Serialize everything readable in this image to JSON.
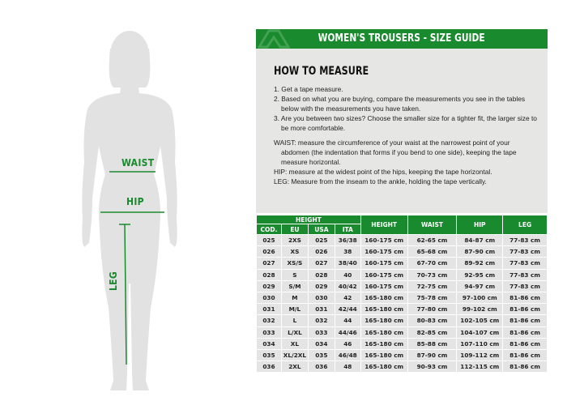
{
  "figure": {
    "labels": {
      "waist": "WAIST",
      "hip": "HIP",
      "leg": "LEG"
    },
    "accent": "#1a8a2e",
    "silhouette_color": "#e2e2e2"
  },
  "header": {
    "title": "WOMEN'S TROUSERS - SIZE GUIDE",
    "color": "#1a8a2e"
  },
  "how_to": {
    "title": "HOW TO MEASURE",
    "steps": [
      "1. Get a tape measure.",
      "2. Based on what you are buying, compare the measurements you see in the tables below with the measurements you have taken.",
      "3. Are you between two sizes? Choose the smaller size for a tighter fit, the larger size to be more comfortable."
    ],
    "notes": [
      "WAIST: measure the circumference of your waist at the narrowest point of your abdomen (the indentation that forms if you bend to one side), keeping the tape measure horizontal.",
      "HIP: measure at the widest point of the hips, keeping the tape horizontal.",
      "LEG: Measure from the inseam to the ankle, holding the tape vertically."
    ]
  },
  "table": {
    "group_header": "HEIGHT",
    "sub_headers": [
      "COD.",
      "EU",
      "USA",
      "ITA"
    ],
    "headers": [
      "HEIGHT",
      "WAIST",
      "HIP",
      "LEG"
    ],
    "rows": [
      [
        "025",
        "2XS",
        "025",
        "36/38",
        "160-175 cm",
        "62-65 cm",
        "84-87 cm",
        "77-83 cm"
      ],
      [
        "026",
        "XS",
        "026",
        "38",
        "160-175 cm",
        "65-68 cm",
        "87-90 cm",
        "77-83 cm"
      ],
      [
        "027",
        "XS/S",
        "027",
        "38/40",
        "160-175 cm",
        "67-70 cm",
        "89-92 cm",
        "77-83 cm"
      ],
      [
        "028",
        "S",
        "028",
        "40",
        "160-175 cm",
        "70-73 cm",
        "92-95 cm",
        "77-83 cm"
      ],
      [
        "029",
        "S/M",
        "029",
        "40/42",
        "160-175 cm",
        "72-75 cm",
        "94-97 cm",
        "77-83 cm"
      ],
      [
        "030",
        "M",
        "030",
        "42",
        "165-180 cm",
        "75-78 cm",
        "97-100 cm",
        "81-86 cm"
      ],
      [
        "031",
        "M/L",
        "031",
        "42/44",
        "165-180 cm",
        "77-80 cm",
        "99-102 cm",
        "81-86 cm"
      ],
      [
        "032",
        "L",
        "032",
        "44",
        "165-180 cm",
        "80-83 cm",
        "102-105 cm",
        "81-86 cm"
      ],
      [
        "033",
        "L/XL",
        "033",
        "44/46",
        "165-180 cm",
        "82-85 cm",
        "104-107 cm",
        "81-86 cm"
      ],
      [
        "034",
        "XL",
        "034",
        "46",
        "165-180 cm",
        "85-88 cm",
        "107-110 cm",
        "81-86 cm"
      ],
      [
        "035",
        "XL/2XL",
        "035",
        "46/48",
        "165-180 cm",
        "87-90 cm",
        "109-112 cm",
        "81-86 cm"
      ],
      [
        "036",
        "2XL",
        "036",
        "48",
        "165-180 cm",
        "90-93 cm",
        "112-115 cm",
        "81-86 cm"
      ]
    ]
  }
}
